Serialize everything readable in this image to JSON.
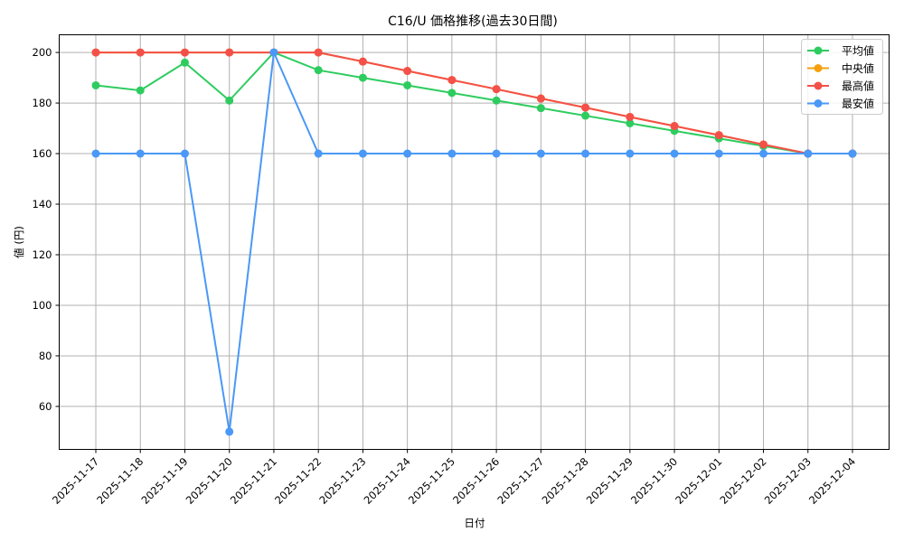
{
  "chart_data": {
    "type": "line",
    "title": "C16/U 価格推移(過去30日間)",
    "xlabel": "日付",
    "ylabel": "値 (円)",
    "ylim": [
      43,
      207
    ],
    "yticks": [
      60,
      80,
      100,
      120,
      140,
      160,
      180,
      200
    ],
    "grid": true,
    "legend_position": "upper right",
    "x": [
      "2025-11-17",
      "2025-11-18",
      "2025-11-19",
      "2025-11-20",
      "2025-11-21",
      "2025-11-22",
      "2025-11-23",
      "2025-11-24",
      "2025-11-25",
      "2025-11-26",
      "2025-11-27",
      "2025-11-28",
      "2025-11-29",
      "2025-11-30",
      "2025-12-01",
      "2025-12-02",
      "2025-12-03",
      "2025-12-04"
    ],
    "series": [
      {
        "name": "平均値",
        "color": "#2ecc5f",
        "values": [
          187,
          185,
          196,
          181,
          200,
          193,
          190,
          187,
          184,
          181,
          178,
          175,
          172,
          169,
          166,
          163,
          160,
          160
        ]
      },
      {
        "name": "中央値",
        "color": "#f5a00f",
        "values": [
          200,
          200,
          200,
          200,
          200,
          200,
          196.4,
          192.7,
          189.1,
          185.5,
          181.8,
          178.2,
          174.5,
          170.9,
          167.3,
          163.6,
          160,
          160
        ]
      },
      {
        "name": "最高値",
        "color": "#f4504a",
        "values": [
          200,
          200,
          200,
          200,
          200,
          200,
          196.4,
          192.7,
          189.1,
          185.5,
          181.8,
          178.2,
          174.5,
          170.9,
          167.3,
          163.6,
          160,
          160
        ]
      },
      {
        "name": "最安値",
        "color": "#4a98f7",
        "values": [
          160,
          160,
          160,
          50,
          200,
          160,
          160,
          160,
          160,
          160,
          160,
          160,
          160,
          160,
          160,
          160,
          160,
          160
        ]
      }
    ]
  }
}
